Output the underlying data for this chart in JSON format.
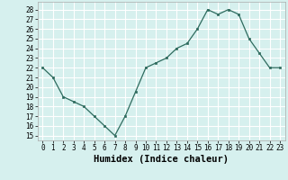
{
  "x": [
    0,
    1,
    2,
    3,
    4,
    5,
    6,
    7,
    8,
    9,
    10,
    11,
    12,
    13,
    14,
    15,
    16,
    17,
    18,
    19,
    20,
    21,
    22,
    23
  ],
  "y": [
    22,
    21,
    19,
    18.5,
    18,
    17,
    16,
    15,
    17,
    19.5,
    22,
    22.5,
    23,
    24,
    24.5,
    26,
    28,
    27.5,
    28,
    27.5,
    25,
    23.5,
    22,
    22
  ],
  "line_color": "#2e6b5e",
  "marker_color": "#2e6b5e",
  "bg_color": "#d6f0ee",
  "grid_color": "#ffffff",
  "xlabel": "Humidex (Indice chaleur)",
  "xlabel_fontsize": 7.5,
  "ylabel_ticks": [
    15,
    16,
    17,
    18,
    19,
    20,
    21,
    22,
    23,
    24,
    25,
    26,
    27,
    28
  ],
  "xlim": [
    -0.5,
    23.5
  ],
  "ylim": [
    14.5,
    28.8
  ],
  "tick_fontsize": 5.5
}
